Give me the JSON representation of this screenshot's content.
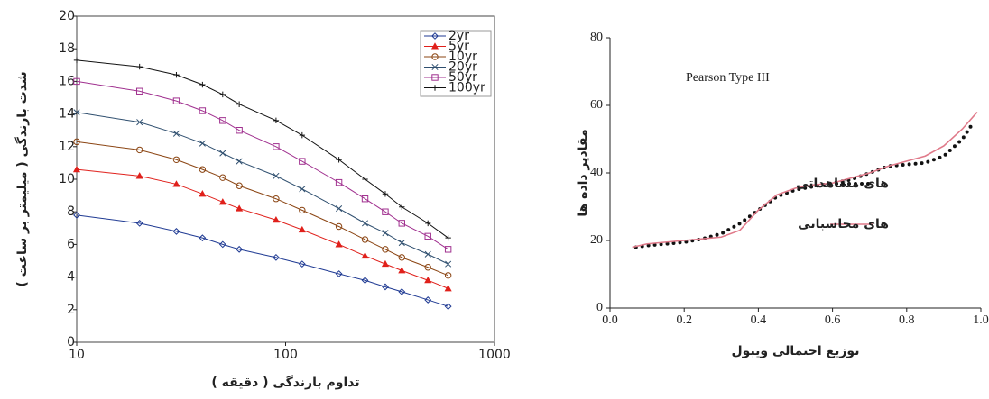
{
  "chart_data": [
    {
      "type": "line",
      "log_x": true,
      "grid": false,
      "legend": "upper right",
      "xlabel": "تداوم بارندگی ( دقیقه )",
      "ylabel": "شدت بارندگی ( میلیمتر بر ساعت )",
      "xlim": [
        10,
        1000
      ],
      "xticks": [
        10,
        100,
        1000
      ],
      "ylim": [
        0,
        20
      ],
      "yticks": [
        0,
        2,
        4,
        6,
        8,
        10,
        12,
        14,
        16,
        18,
        20
      ],
      "x": [
        10,
        20,
        30,
        40,
        50,
        60,
        90,
        120,
        180,
        240,
        300,
        360,
        480,
        600
      ],
      "series": [
        {
          "name": "2yr",
          "color": "#1f3a93",
          "marker": "diamond",
          "values": [
            7.8,
            7.3,
            6.8,
            6.4,
            6.0,
            5.7,
            5.2,
            4.8,
            4.2,
            3.8,
            3.4,
            3.1,
            2.6,
            2.2
          ]
        },
        {
          "name": "5yr",
          "color": "#e0201b",
          "marker": "triangle",
          "values": [
            10.6,
            10.2,
            9.7,
            9.1,
            8.6,
            8.2,
            7.5,
            6.9,
            6.0,
            5.3,
            4.8,
            4.4,
            3.8,
            3.3
          ]
        },
        {
          "name": "10yr",
          "color": "#8b4513",
          "marker": "circle",
          "values": [
            12.3,
            11.8,
            11.2,
            10.6,
            10.1,
            9.6,
            8.8,
            8.1,
            7.1,
            6.3,
            5.7,
            5.2,
            4.6,
            4.1
          ]
        },
        {
          "name": "20yr",
          "color": "#2f4f6f",
          "marker": "x",
          "values": [
            14.1,
            13.5,
            12.8,
            12.2,
            11.6,
            11.1,
            10.2,
            9.4,
            8.2,
            7.3,
            6.7,
            6.1,
            5.4,
            4.8
          ]
        },
        {
          "name": "50yr",
          "color": "#a0308f",
          "marker": "square",
          "values": [
            16.0,
            15.4,
            14.8,
            14.2,
            13.6,
            13.0,
            12.0,
            11.1,
            9.8,
            8.8,
            8.0,
            7.3,
            6.5,
            5.7
          ]
        },
        {
          "name": "100yr",
          "color": "#111111",
          "marker": "plus",
          "values": [
            17.3,
            16.9,
            16.4,
            15.8,
            15.2,
            14.6,
            13.6,
            12.7,
            11.2,
            10.0,
            9.1,
            8.3,
            7.3,
            6.4
          ]
        }
      ]
    },
    {
      "type": "line",
      "title": "Pearson Type III",
      "grid": false,
      "legend": "right",
      "xlabel": "توزیع احتمالی ویبول",
      "ylabel": "مقادیر داده ها",
      "xlim": [
        0,
        1
      ],
      "xticks": [
        {
          "value": 0,
          "label": "0.0"
        },
        0.2,
        0.4,
        0.6,
        0.8,
        {
          "value": 1,
          "label": "1.0"
        }
      ],
      "ylim": [
        0,
        80
      ],
      "yticks": [
        0,
        20,
        40,
        60,
        80
      ],
      "series": [
        {
          "name": "های مشاهداتی",
          "color": "#111111",
          "style": "dotted",
          "x": [
            0.07,
            0.1,
            0.15,
            0.2,
            0.25,
            0.3,
            0.35,
            0.4,
            0.45,
            0.5,
            0.55,
            0.6,
            0.65,
            0.7,
            0.75,
            0.8,
            0.85,
            0.9,
            0.95,
            0.98
          ],
          "values": [
            18,
            18.5,
            19,
            19.5,
            20.5,
            22,
            25,
            29,
            33,
            35,
            36,
            37,
            38,
            40,
            42,
            42.5,
            43,
            45,
            50,
            55
          ]
        },
        {
          "name": "های محاسباتی",
          "color": "#e07a8a",
          "style": "solid",
          "x": [
            0.06,
            0.1,
            0.2,
            0.3,
            0.35,
            0.4,
            0.45,
            0.5,
            0.55,
            0.6,
            0.65,
            0.7,
            0.75,
            0.8,
            0.85,
            0.9,
            0.95,
            0.99
          ],
          "values": [
            18,
            19,
            20,
            21,
            23,
            29,
            33.5,
            35.5,
            36.5,
            37,
            38.5,
            40,
            42,
            43.5,
            45,
            48,
            53,
            58
          ]
        }
      ]
    }
  ]
}
